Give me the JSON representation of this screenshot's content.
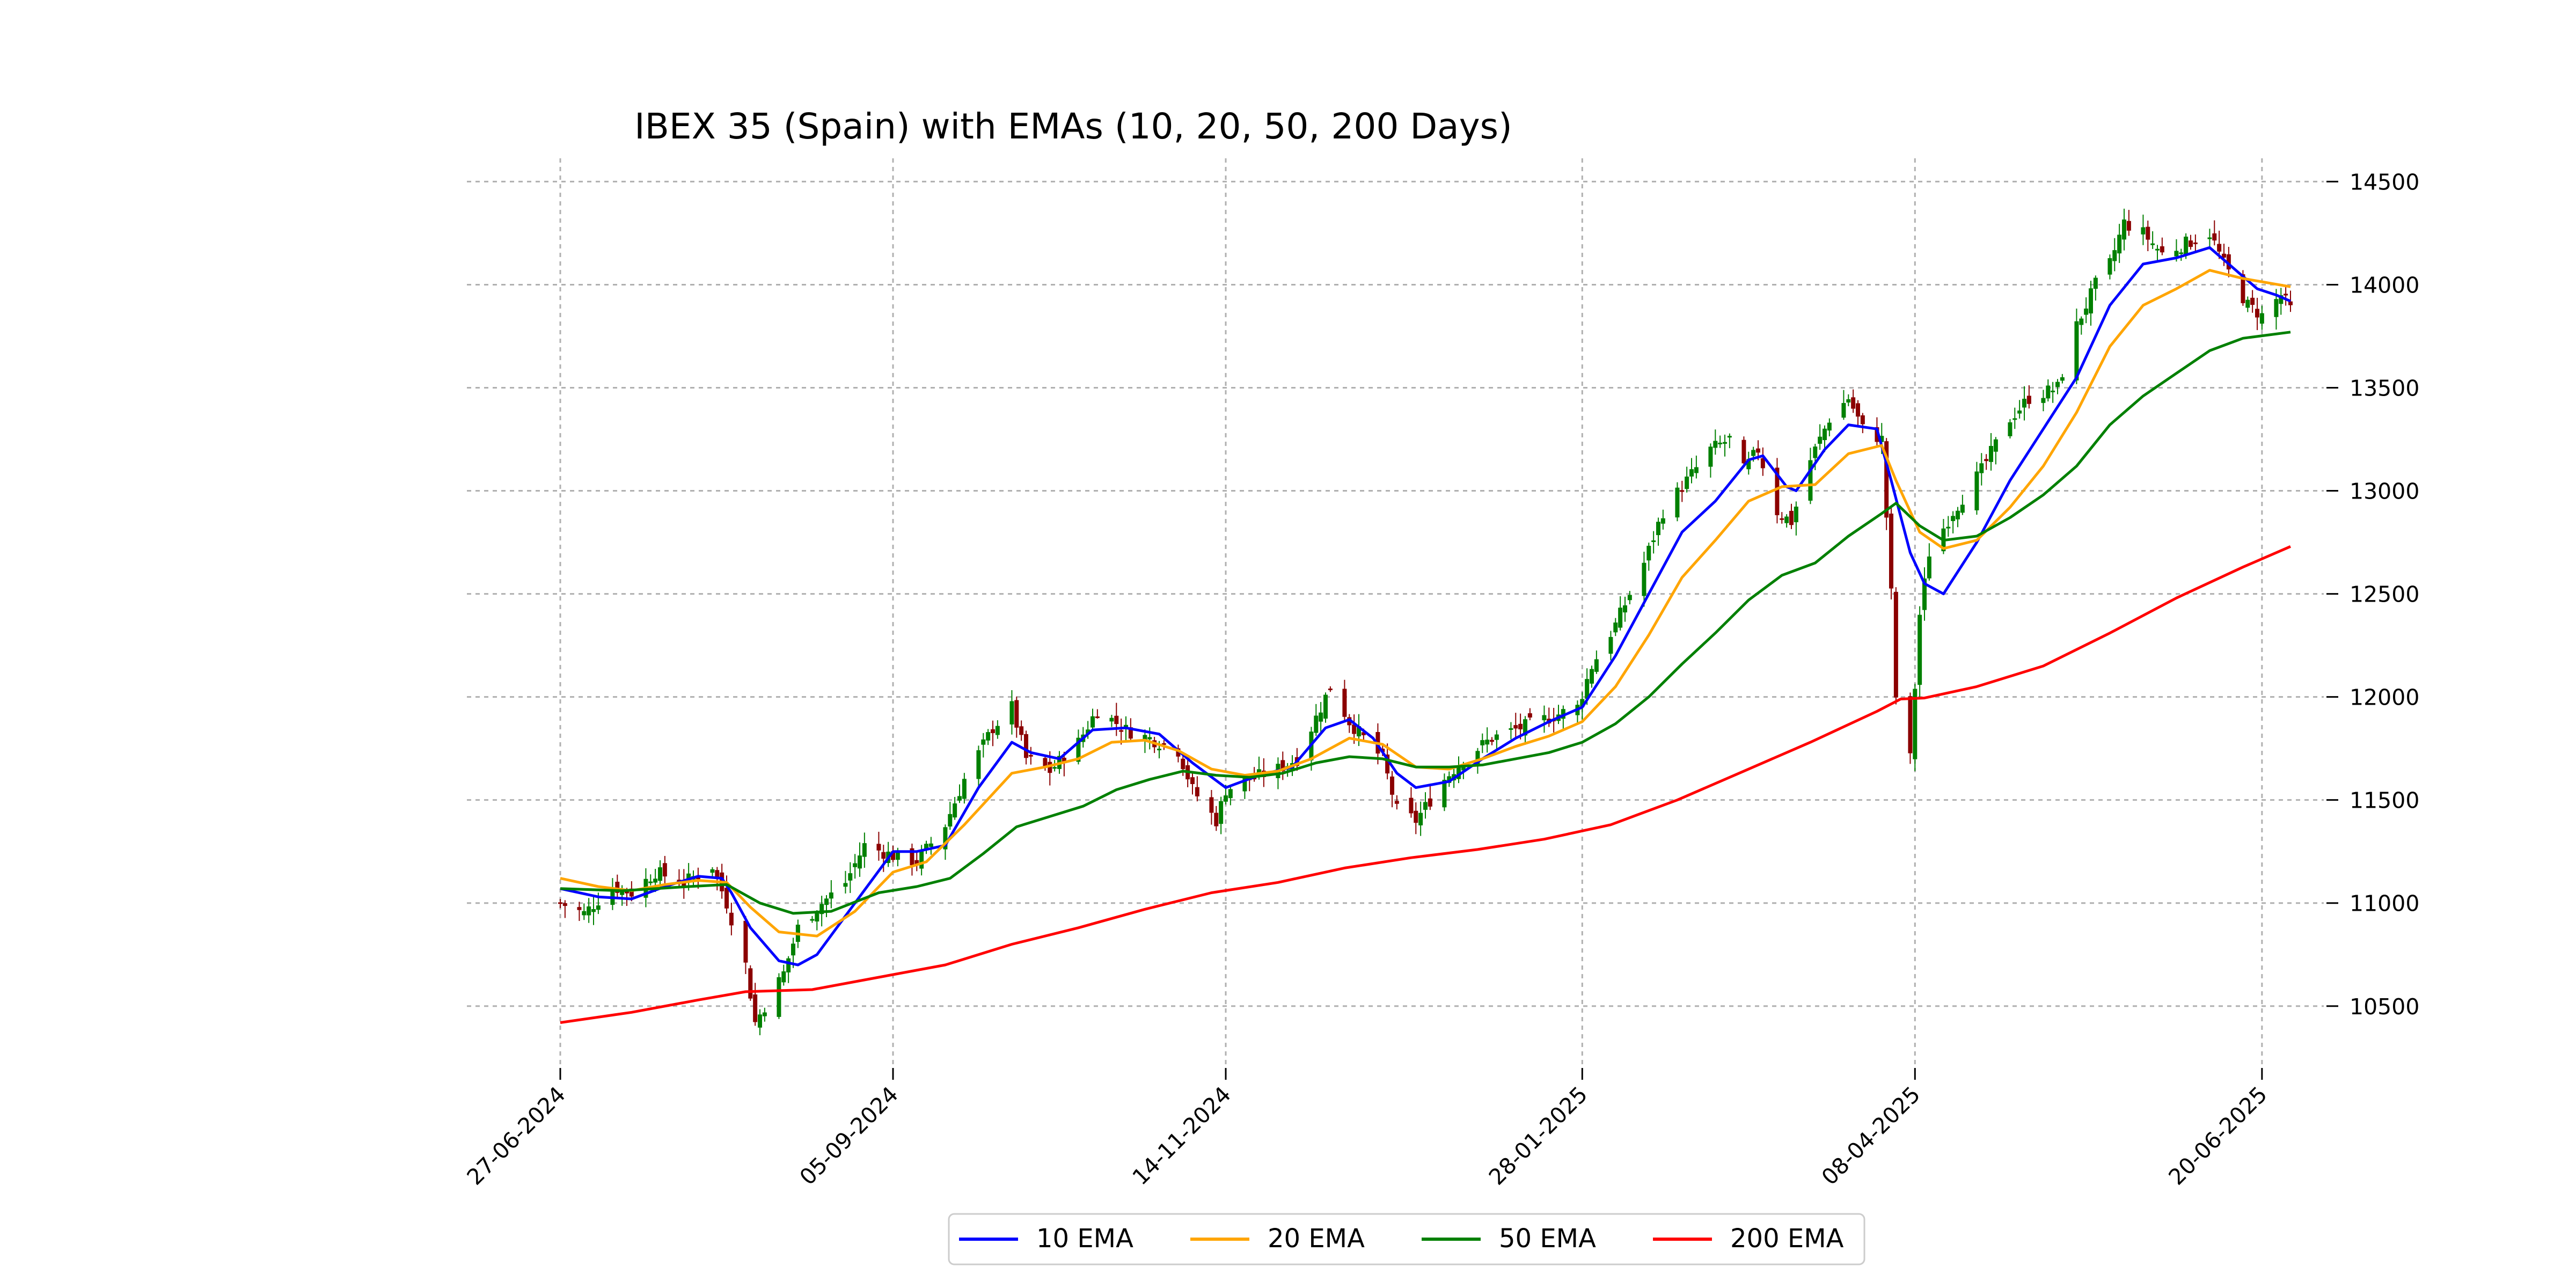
{
  "chart_data": {
    "type": "candlestick",
    "title": "IBEX 35 (Spain) with EMAs (10, 20, 50, 200 Days)",
    "xlabel": "",
    "ylabel": "",
    "x_range": [
      "2024-06-27",
      "2025-06-26"
    ],
    "ylim": [
      10200,
      14600
    ],
    "x_tick_labels": [
      "27-06-2024",
      "05-09-2024",
      "14-11-2024",
      "28-01-2025",
      "08-04-2025",
      "20-06-2025"
    ],
    "y_tick_labels": [
      "10500",
      "11000",
      "11500",
      "12000",
      "12500",
      "13000",
      "13500",
      "14000",
      "14500"
    ],
    "y_axis_position": "right",
    "grid": true,
    "legend_position": "bottom-center",
    "candle_colors": {
      "up": "#008000",
      "down": "#8b0000"
    },
    "close_anchors": [
      [
        "2024-06-27",
        11000
      ],
      [
        "2024-07-02",
        10950
      ],
      [
        "2024-07-08",
        11080
      ],
      [
        "2024-07-12",
        11050
      ],
      [
        "2024-07-17",
        11150
      ],
      [
        "2024-07-23",
        11100
      ],
      [
        "2024-07-29",
        11180
      ],
      [
        "2024-08-01",
        11000
      ],
      [
        "2024-08-05",
        10700
      ],
      [
        "2024-08-07",
        10420
      ],
      [
        "2024-08-09",
        10500
      ],
      [
        "2024-08-13",
        10660
      ],
      [
        "2024-08-16",
        10880
      ],
      [
        "2024-08-21",
        11000
      ],
      [
        "2024-08-26",
        11100
      ],
      [
        "2024-08-30",
        11280
      ],
      [
        "2024-09-05",
        11230
      ],
      [
        "2024-09-10",
        11200
      ],
      [
        "2024-09-16",
        11380
      ],
      [
        "2024-09-20",
        11600
      ],
      [
        "2024-09-26",
        11850
      ],
      [
        "2024-09-30",
        11950
      ],
      [
        "2024-10-03",
        11700
      ],
      [
        "2024-10-08",
        11640
      ],
      [
        "2024-10-14",
        11780
      ],
      [
        "2024-10-18",
        11940
      ],
      [
        "2024-10-24",
        11840
      ],
      [
        "2024-10-30",
        11790
      ],
      [
        "2024-11-04",
        11740
      ],
      [
        "2024-11-07",
        11550
      ],
      [
        "2024-11-12",
        11400
      ],
      [
        "2024-11-14",
        11550
      ],
      [
        "2024-11-19",
        11600
      ],
      [
        "2024-11-25",
        11650
      ],
      [
        "2024-11-29",
        11700
      ],
      [
        "2024-12-03",
        11900
      ],
      [
        "2024-12-06",
        12050
      ],
      [
        "2024-12-10",
        11880
      ],
      [
        "2024-12-13",
        11800
      ],
      [
        "2024-12-17",
        11700
      ],
      [
        "2024-12-20",
        11450
      ],
      [
        "2024-12-24",
        11400
      ],
      [
        "2024-12-30",
        11600
      ],
      [
        "2025-01-03",
        11700
      ],
      [
        "2025-01-09",
        11800
      ],
      [
        "2025-01-15",
        11850
      ],
      [
        "2025-01-21",
        11900
      ],
      [
        "2025-01-27",
        11950
      ],
      [
        "2025-01-30",
        12150
      ],
      [
        "2025-02-04",
        12350
      ],
      [
        "2025-02-10",
        12650
      ],
      [
        "2025-02-14",
        12900
      ],
      [
        "2025-02-19",
        13050
      ],
      [
        "2025-02-24",
        13200
      ],
      [
        "2025-02-28",
        13250
      ],
      [
        "2025-03-03",
        13100
      ],
      [
        "2025-03-06",
        13200
      ],
      [
        "2025-03-10",
        12900
      ],
      [
        "2025-03-13",
        12850
      ],
      [
        "2025-03-17",
        13150
      ],
      [
        "2025-03-21",
        13350
      ],
      [
        "2025-03-25",
        13450
      ],
      [
        "2025-03-28",
        13300
      ],
      [
        "2025-04-01",
        13250
      ],
      [
        "2025-04-03",
        12500
      ],
      [
        "2025-04-04",
        12000
      ],
      [
        "2025-04-07",
        11700
      ],
      [
        "2025-04-08",
        12050
      ],
      [
        "2025-04-09",
        12400
      ],
      [
        "2025-04-11",
        12700
      ],
      [
        "2025-04-16",
        12900
      ],
      [
        "2025-04-22",
        13100
      ],
      [
        "2025-04-28",
        13350
      ],
      [
        "2025-05-02",
        13450
      ],
      [
        "2025-05-08",
        13500
      ],
      [
        "2025-05-12",
        13800
      ],
      [
        "2025-05-16",
        14000
      ],
      [
        "2025-05-19",
        14100
      ],
      [
        "2025-05-22",
        14300
      ],
      [
        "2025-05-26",
        14250
      ],
      [
        "2025-05-30",
        14150
      ],
      [
        "2025-06-04",
        14200
      ],
      [
        "2025-06-09",
        14250
      ],
      [
        "2025-06-12",
        14100
      ],
      [
        "2025-06-17",
        13900
      ],
      [
        "2025-06-20",
        13850
      ],
      [
        "2025-06-24",
        13950
      ],
      [
        "2025-06-26",
        13880
      ]
    ],
    "series": [
      {
        "name": "10 EMA",
        "color": "#0000ff",
        "values": [
          [
            "2024-06-27",
            11070
          ],
          [
            "2024-07-05",
            11030
          ],
          [
            "2024-07-12",
            11020
          ],
          [
            "2024-07-19",
            11080
          ],
          [
            "2024-07-26",
            11130
          ],
          [
            "2024-07-31",
            11120
          ],
          [
            "2024-08-02",
            11050
          ],
          [
            "2024-08-06",
            10880
          ],
          [
            "2024-08-12",
            10720
          ],
          [
            "2024-08-16",
            10700
          ],
          [
            "2024-08-20",
            10750
          ],
          [
            "2024-08-28",
            11000
          ],
          [
            "2024-09-05",
            11250
          ],
          [
            "2024-09-10",
            11250
          ],
          [
            "2024-09-16",
            11280
          ],
          [
            "2024-09-23",
            11560
          ],
          [
            "2024-09-30",
            11780
          ],
          [
            "2024-10-04",
            11730
          ],
          [
            "2024-10-10",
            11700
          ],
          [
            "2024-10-17",
            11840
          ],
          [
            "2024-10-24",
            11850
          ],
          [
            "2024-10-31",
            11820
          ],
          [
            "2024-11-07",
            11680
          ],
          [
            "2024-11-14",
            11560
          ],
          [
            "2024-11-21",
            11620
          ],
          [
            "2024-11-28",
            11660
          ],
          [
            "2024-12-05",
            11850
          ],
          [
            "2024-12-10",
            11890
          ],
          [
            "2024-12-15",
            11800
          ],
          [
            "2024-12-20",
            11630
          ],
          [
            "2024-12-24",
            11560
          ],
          [
            "2024-12-31",
            11590
          ],
          [
            "2025-01-07",
            11700
          ],
          [
            "2025-01-14",
            11800
          ],
          [
            "2025-01-21",
            11880
          ],
          [
            "2025-01-28",
            11950
          ],
          [
            "2025-02-04",
            12200
          ],
          [
            "2025-02-11",
            12500
          ],
          [
            "2025-02-18",
            12800
          ],
          [
            "2025-02-25",
            12950
          ],
          [
            "2025-03-04",
            13150
          ],
          [
            "2025-03-07",
            13170
          ],
          [
            "2025-03-12",
            13020
          ],
          [
            "2025-03-14",
            13000
          ],
          [
            "2025-03-20",
            13200
          ],
          [
            "2025-03-25",
            13320
          ],
          [
            "2025-03-31",
            13300
          ],
          [
            "2025-04-03",
            13050
          ],
          [
            "2025-04-07",
            12700
          ],
          [
            "2025-04-10",
            12550
          ],
          [
            "2025-04-14",
            12500
          ],
          [
            "2025-04-21",
            12750
          ],
          [
            "2025-04-28",
            13050
          ],
          [
            "2025-05-05",
            13300
          ],
          [
            "2025-05-12",
            13550
          ],
          [
            "2025-05-19",
            13900
          ],
          [
            "2025-05-26",
            14100
          ],
          [
            "2025-06-02",
            14130
          ],
          [
            "2025-06-09",
            14180
          ],
          [
            "2025-06-13",
            14100
          ],
          [
            "2025-06-19",
            13980
          ],
          [
            "2025-06-23",
            13950
          ],
          [
            "2025-06-26",
            13920
          ]
        ]
      },
      {
        "name": "20 EMA",
        "color": "#ffa500",
        "values": [
          [
            "2024-06-27",
            11120
          ],
          [
            "2024-07-05",
            11080
          ],
          [
            "2024-07-12",
            11060
          ],
          [
            "2024-07-19",
            11090
          ],
          [
            "2024-07-26",
            11110
          ],
          [
            "2024-08-01",
            11100
          ],
          [
            "2024-08-06",
            10980
          ],
          [
            "2024-08-12",
            10860
          ],
          [
            "2024-08-20",
            10840
          ],
          [
            "2024-08-28",
            10960
          ],
          [
            "2024-09-05",
            11150
          ],
          [
            "2024-09-12",
            11200
          ],
          [
            "2024-09-20",
            11380
          ],
          [
            "2024-09-30",
            11630
          ],
          [
            "2024-10-07",
            11660
          ],
          [
            "2024-10-14",
            11700
          ],
          [
            "2024-10-21",
            11780
          ],
          [
            "2024-10-28",
            11790
          ],
          [
            "2024-11-04",
            11740
          ],
          [
            "2024-11-11",
            11650
          ],
          [
            "2024-11-18",
            11620
          ],
          [
            "2024-11-25",
            11640
          ],
          [
            "2024-12-02",
            11700
          ],
          [
            "2024-12-10",
            11800
          ],
          [
            "2024-12-17",
            11770
          ],
          [
            "2024-12-24",
            11660
          ],
          [
            "2024-12-31",
            11650
          ],
          [
            "2025-01-07",
            11700
          ],
          [
            "2025-01-14",
            11760
          ],
          [
            "2025-01-21",
            11810
          ],
          [
            "2025-01-28",
            11880
          ],
          [
            "2025-02-04",
            12050
          ],
          [
            "2025-02-11",
            12300
          ],
          [
            "2025-02-18",
            12580
          ],
          [
            "2025-02-25",
            12760
          ],
          [
            "2025-03-04",
            12950
          ],
          [
            "2025-03-11",
            13020
          ],
          [
            "2025-03-18",
            13030
          ],
          [
            "2025-03-25",
            13180
          ],
          [
            "2025-04-01",
            13220
          ],
          [
            "2025-04-04",
            13050
          ],
          [
            "2025-04-09",
            12800
          ],
          [
            "2025-04-14",
            12720
          ],
          [
            "2025-04-21",
            12760
          ],
          [
            "2025-04-28",
            12920
          ],
          [
            "2025-05-05",
            13120
          ],
          [
            "2025-05-12",
            13380
          ],
          [
            "2025-05-19",
            13700
          ],
          [
            "2025-05-26",
            13900
          ],
          [
            "2025-06-02",
            13980
          ],
          [
            "2025-06-09",
            14070
          ],
          [
            "2025-06-16",
            14030
          ],
          [
            "2025-06-26",
            13990
          ]
        ]
      },
      {
        "name": "50 EMA",
        "color": "#008000",
        "values": [
          [
            "2024-06-27",
            11070
          ],
          [
            "2024-07-10",
            11060
          ],
          [
            "2024-07-24",
            11080
          ],
          [
            "2024-08-01",
            11090
          ],
          [
            "2024-08-08",
            11000
          ],
          [
            "2024-08-15",
            10950
          ],
          [
            "2024-08-23",
            10960
          ],
          [
            "2024-09-02",
            11050
          ],
          [
            "2024-09-10",
            11080
          ],
          [
            "2024-09-17",
            11120
          ],
          [
            "2024-09-24",
            11240
          ],
          [
            "2024-10-01",
            11370
          ],
          [
            "2024-10-08",
            11420
          ],
          [
            "2024-10-15",
            11470
          ],
          [
            "2024-10-22",
            11550
          ],
          [
            "2024-10-29",
            11600
          ],
          [
            "2024-11-05",
            11640
          ],
          [
            "2024-11-12",
            11620
          ],
          [
            "2024-11-19",
            11610
          ],
          [
            "2024-11-26",
            11630
          ],
          [
            "2024-12-03",
            11680
          ],
          [
            "2024-12-10",
            11710
          ],
          [
            "2024-12-17",
            11700
          ],
          [
            "2024-12-24",
            11660
          ],
          [
            "2024-12-31",
            11660
          ],
          [
            "2025-01-07",
            11670
          ],
          [
            "2025-01-14",
            11700
          ],
          [
            "2025-01-21",
            11730
          ],
          [
            "2025-01-28",
            11780
          ],
          [
            "2025-02-04",
            11870
          ],
          [
            "2025-02-11",
            12000
          ],
          [
            "2025-02-18",
            12160
          ],
          [
            "2025-02-25",
            12310
          ],
          [
            "2025-03-04",
            12470
          ],
          [
            "2025-03-11",
            12590
          ],
          [
            "2025-03-18",
            12650
          ],
          [
            "2025-03-25",
            12780
          ],
          [
            "2025-04-01",
            12890
          ],
          [
            "2025-04-04",
            12940
          ],
          [
            "2025-04-09",
            12830
          ],
          [
            "2025-04-14",
            12760
          ],
          [
            "2025-04-21",
            12780
          ],
          [
            "2025-04-28",
            12870
          ],
          [
            "2025-05-05",
            12980
          ],
          [
            "2025-05-12",
            13120
          ],
          [
            "2025-05-19",
            13320
          ],
          [
            "2025-05-26",
            13460
          ],
          [
            "2025-06-02",
            13570
          ],
          [
            "2025-06-09",
            13680
          ],
          [
            "2025-06-16",
            13740
          ],
          [
            "2025-06-26",
            13770
          ]
        ]
      },
      {
        "name": "200 EMA",
        "color": "#ff0000",
        "values": [
          [
            "2024-06-27",
            10420
          ],
          [
            "2024-07-12",
            10470
          ],
          [
            "2024-07-26",
            10530
          ],
          [
            "2024-08-05",
            10570
          ],
          [
            "2024-08-19",
            10580
          ],
          [
            "2024-09-02",
            10640
          ],
          [
            "2024-09-16",
            10700
          ],
          [
            "2024-09-30",
            10800
          ],
          [
            "2024-10-14",
            10880
          ],
          [
            "2024-10-28",
            10970
          ],
          [
            "2024-11-11",
            11050
          ],
          [
            "2024-11-25",
            11100
          ],
          [
            "2024-12-09",
            11170
          ],
          [
            "2024-12-23",
            11220
          ],
          [
            "2025-01-06",
            11260
          ],
          [
            "2025-01-20",
            11310
          ],
          [
            "2025-02-03",
            11380
          ],
          [
            "2025-02-17",
            11500
          ],
          [
            "2025-03-03",
            11640
          ],
          [
            "2025-03-17",
            11780
          ],
          [
            "2025-03-31",
            11930
          ],
          [
            "2025-04-05",
            11990
          ],
          [
            "2025-04-10",
            11995
          ],
          [
            "2025-04-21",
            12050
          ],
          [
            "2025-05-05",
            12150
          ],
          [
            "2025-05-19",
            12310
          ],
          [
            "2025-06-02",
            12480
          ],
          [
            "2025-06-16",
            12630
          ],
          [
            "2025-06-26",
            12730
          ]
        ]
      }
    ]
  }
}
